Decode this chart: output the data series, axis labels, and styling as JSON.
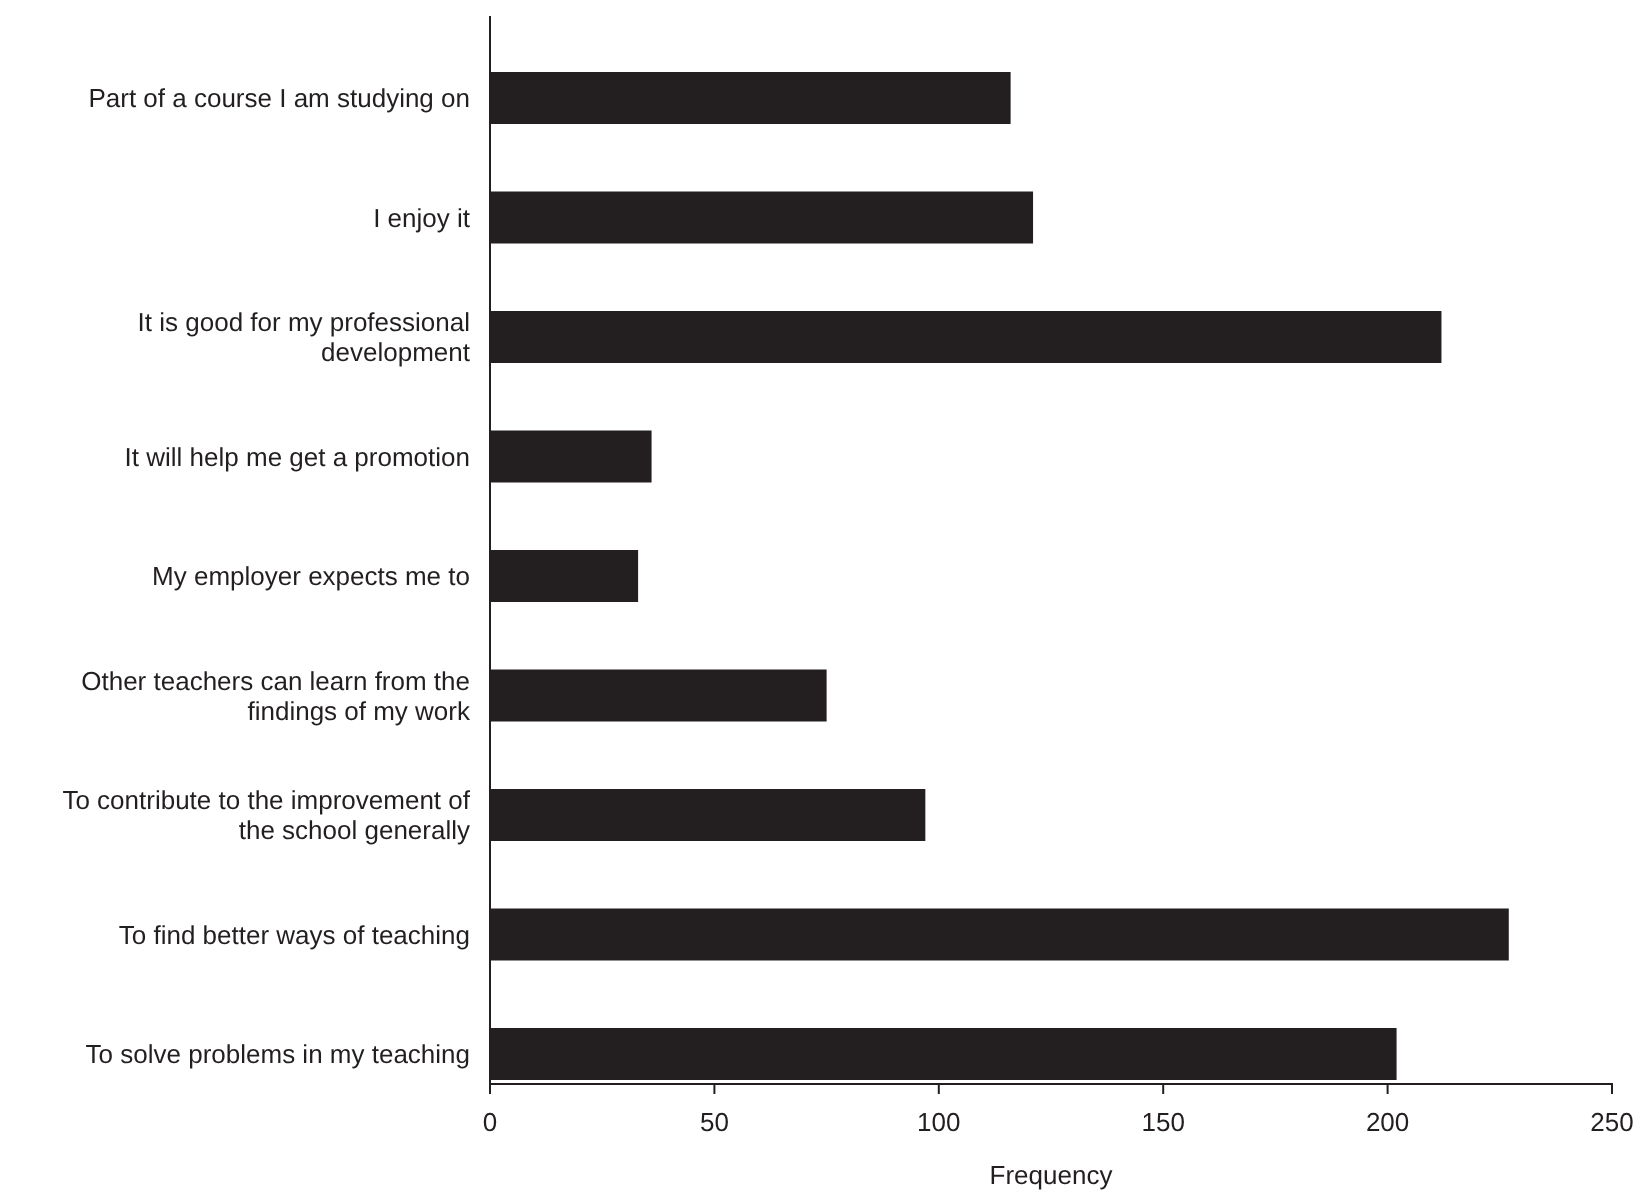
{
  "chart_data": {
    "type": "bar",
    "orientation": "horizontal",
    "xlabel": "Frequency",
    "categories": [
      "Part of a course I am studying on",
      "I enjoy it",
      "It is good for my professional development",
      "It will help me get a promotion",
      "My employer expects me to",
      "Other teachers can learn from the findings of my work",
      "To contribute to the improvement of the school generally",
      "To find better ways of teaching",
      "To solve problems in my teaching"
    ],
    "values": [
      116,
      121,
      212,
      36,
      33,
      75,
      97,
      227,
      202
    ],
    "color": "#231f20",
    "xlim": [
      0,
      250
    ],
    "xticks": [
      0,
      50,
      100,
      150,
      200,
      250
    ],
    "grid": false
  }
}
